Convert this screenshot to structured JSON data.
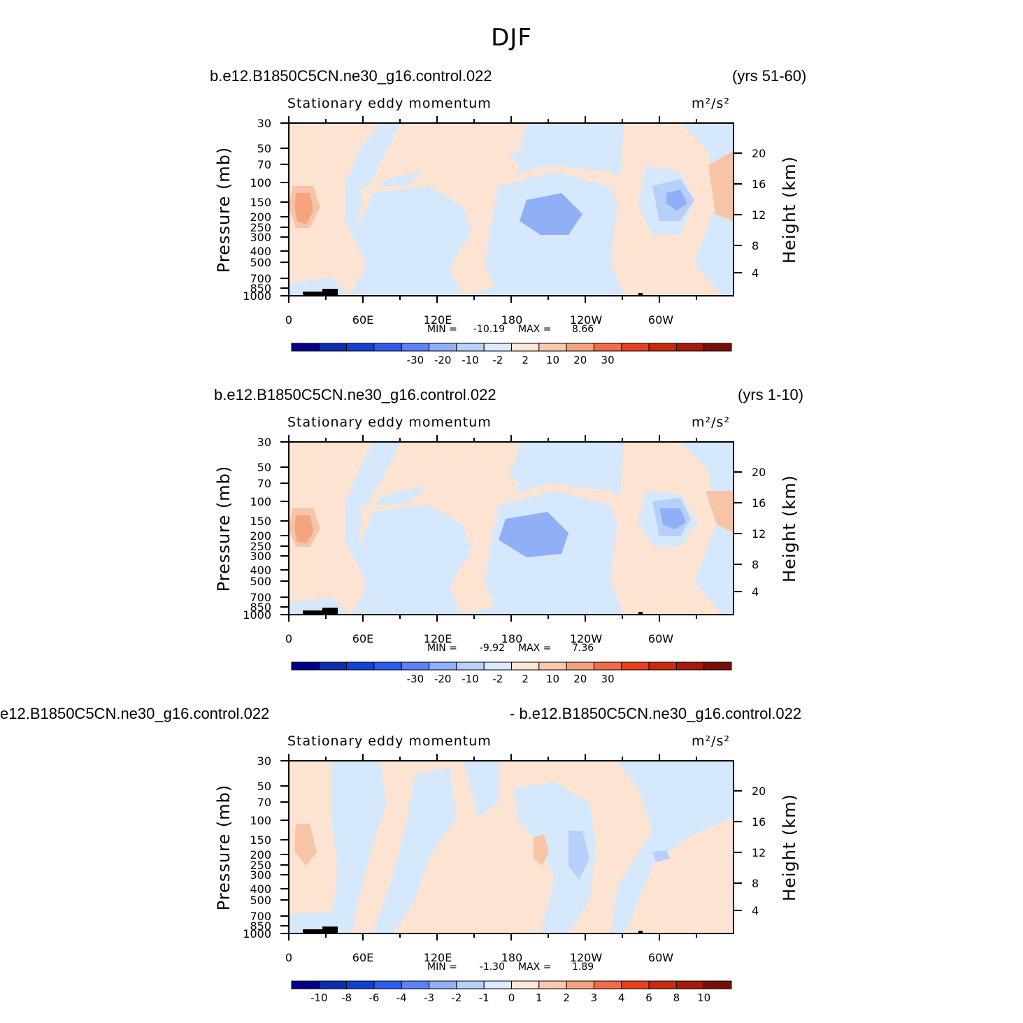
{
  "figure": {
    "title": "DJF"
  },
  "panels": [
    {
      "title_left": "b.e12.B1850C5CN.ne30_g16.control.022",
      "title_right": "(yrs 51-60)",
      "chart_data": {
        "type": "heatmap",
        "variable": "Stationary eddy momentum",
        "units": "m²/s²",
        "x_ticks": [
          "0",
          "60E",
          "120E",
          "180",
          "120W",
          "60W"
        ],
        "y_left_label": "Pressure  (mb)",
        "y_left_ticks": [
          "30",
          "50",
          "70",
          "100",
          "150",
          "200",
          "250",
          "300",
          "400",
          "500",
          "700",
          "850",
          "1000"
        ],
        "y_right_label": "Height  (km)",
        "y_right_ticks": [
          "20",
          "16",
          "12",
          "8",
          "4"
        ],
        "min_label": "MIN =",
        "min": "-10.19",
        "max_label": "MAX =",
        "max": "8.66",
        "colorbar_labels": [
          "-30",
          "-20",
          "-10",
          "-2",
          "2",
          "10",
          "20",
          "30"
        ],
        "colorbar_colors": [
          "#00008c",
          "#0c2fae",
          "#1240d6",
          "#2e5bf0",
          "#5c82f7",
          "#90aff9",
          "#b9d0fb",
          "#dbe9fe",
          "#ffe6d5",
          "#fcc7ac",
          "#f7a27f",
          "#f26c45",
          "#e8401e",
          "#cc2a10",
          "#a7190a",
          "#7a0d06"
        ]
      }
    },
    {
      "title_left": "b.e12.B1850C5CN.ne30_g16.control.022",
      "title_right": "(yrs 1-10)",
      "chart_data": {
        "type": "heatmap",
        "variable": "Stationary eddy momentum",
        "units": "m²/s²",
        "x_ticks": [
          "0",
          "60E",
          "120E",
          "180",
          "120W",
          "60W"
        ],
        "y_left_label": "Pressure  (mb)",
        "y_left_ticks": [
          "30",
          "50",
          "70",
          "100",
          "150",
          "200",
          "250",
          "300",
          "400",
          "500",
          "700",
          "850",
          "1000"
        ],
        "y_right_label": "Height  (km)",
        "y_right_ticks": [
          "20",
          "16",
          "12",
          "8",
          "4"
        ],
        "min_label": "MIN =",
        "min": "-9.92",
        "max_label": "MAX =",
        "max": "7.36",
        "colorbar_labels": [
          "-30",
          "-20",
          "-10",
          "-2",
          "2",
          "10",
          "20",
          "30"
        ],
        "colorbar_colors": [
          "#00008c",
          "#0c2fae",
          "#1240d6",
          "#2e5bf0",
          "#5c82f7",
          "#90aff9",
          "#b9d0fb",
          "#dbe9fe",
          "#ffe6d5",
          "#fcc7ac",
          "#f7a27f",
          "#f26c45",
          "#e8401e",
          "#cc2a10",
          "#a7190a",
          "#7a0d06"
        ]
      }
    },
    {
      "title_left": "e12.B1850C5CN.ne30_g16.control.022",
      "title_right": "- b.e12.B1850C5CN.ne30_g16.control.022",
      "chart_data": {
        "type": "heatmap",
        "variable": "Stationary eddy momentum",
        "units": "m²/s²",
        "x_ticks": [
          "0",
          "60E",
          "120E",
          "180",
          "120W",
          "60W"
        ],
        "y_left_label": "Pressure  (mb)",
        "y_left_ticks": [
          "30",
          "50",
          "70",
          "100",
          "150",
          "200",
          "250",
          "300",
          "400",
          "500",
          "700",
          "850",
          "1000"
        ],
        "y_right_label": "Height  (km)",
        "y_right_ticks": [
          "20",
          "16",
          "12",
          "8",
          "4"
        ],
        "min_label": "MIN =",
        "min": "-1.30",
        "max_label": "MAX =",
        "max": "1.89",
        "colorbar_labels": [
          "-10",
          "-8",
          "-6",
          "-4",
          "-3",
          "-2",
          "-1",
          "0",
          "1",
          "2",
          "3",
          "4",
          "6",
          "8",
          "10"
        ],
        "colorbar_colors": [
          "#00008c",
          "#0c2fae",
          "#1240d6",
          "#2e5bf0",
          "#5c82f7",
          "#90aff9",
          "#b9d0fb",
          "#dbe9fe",
          "#ffe6d5",
          "#fcc7ac",
          "#f7a27f",
          "#f26c45",
          "#e8401e",
          "#cc2a10",
          "#a7190a",
          "#7a0d06"
        ]
      }
    }
  ]
}
